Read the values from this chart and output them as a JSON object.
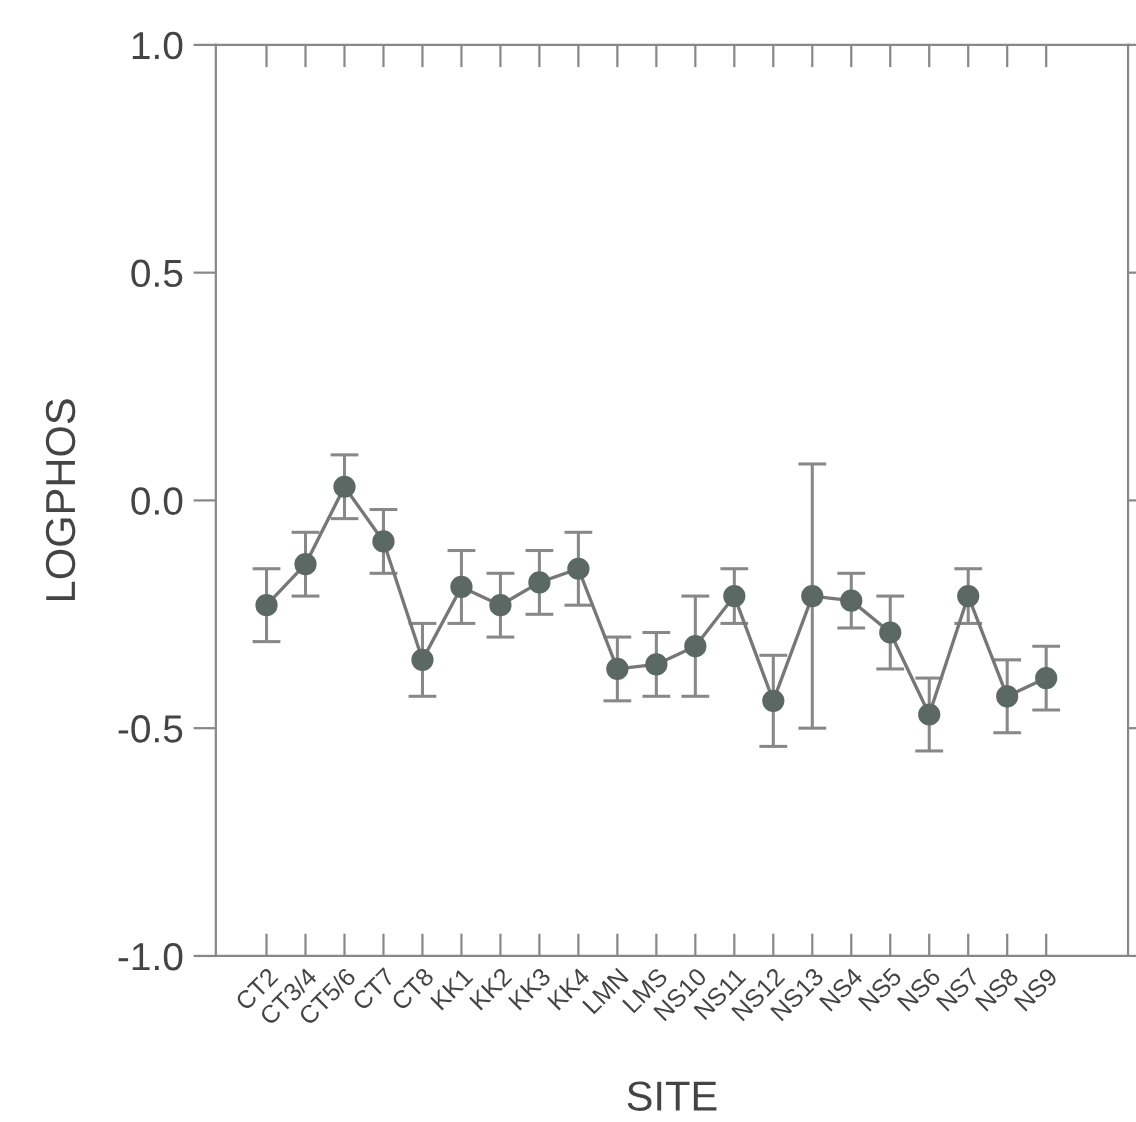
{
  "chart_data": {
    "type": "line",
    "xlabel": "SITE",
    "ylabel": "LOGPHOS",
    "categories": [
      "CT2",
      "CT3/4",
      "CT5/6",
      "CT7",
      "CT8",
      "KK1",
      "KK2",
      "KK3",
      "KK4",
      "LMN",
      "LMS",
      "NS10",
      "NS11",
      "NS12",
      "NS13",
      "NS4",
      "NS5",
      "NS6",
      "NS7",
      "NS8",
      "NS9"
    ],
    "series": [
      {
        "color": "#5b6864",
        "values": [
          -0.23,
          -0.14,
          0.03,
          -0.09,
          -0.35,
          -0.19,
          -0.23,
          -0.18,
          -0.15,
          -0.37,
          -0.36,
          -0.32,
          -0.21,
          -0.44,
          -0.21,
          -0.22,
          -0.29,
          -0.47,
          -0.21,
          -0.43,
          -0.39
        ],
        "errors": [
          0.08,
          0.07,
          0.07,
          0.07,
          0.08,
          0.08,
          0.07,
          0.07,
          0.08,
          0.07,
          0.07,
          0.11,
          0.06,
          0.1,
          0.29,
          0.06,
          0.08,
          0.08,
          0.06,
          0.08,
          0.07
        ]
      }
    ],
    "ylim": [
      -1.0,
      1.0
    ],
    "yticks": [
      {
        "value": -1.0,
        "label": "-1.0"
      },
      {
        "value": -0.5,
        "label": "-0.5"
      },
      {
        "value": 0,
        "label": "0.0"
      },
      {
        "value": 0.5,
        "label": "0.5"
      },
      {
        "value": 1.0,
        "label": "1.0"
      }
    ],
    "marker": "circle",
    "line_style": "solid",
    "grid": false,
    "legend": false
  }
}
